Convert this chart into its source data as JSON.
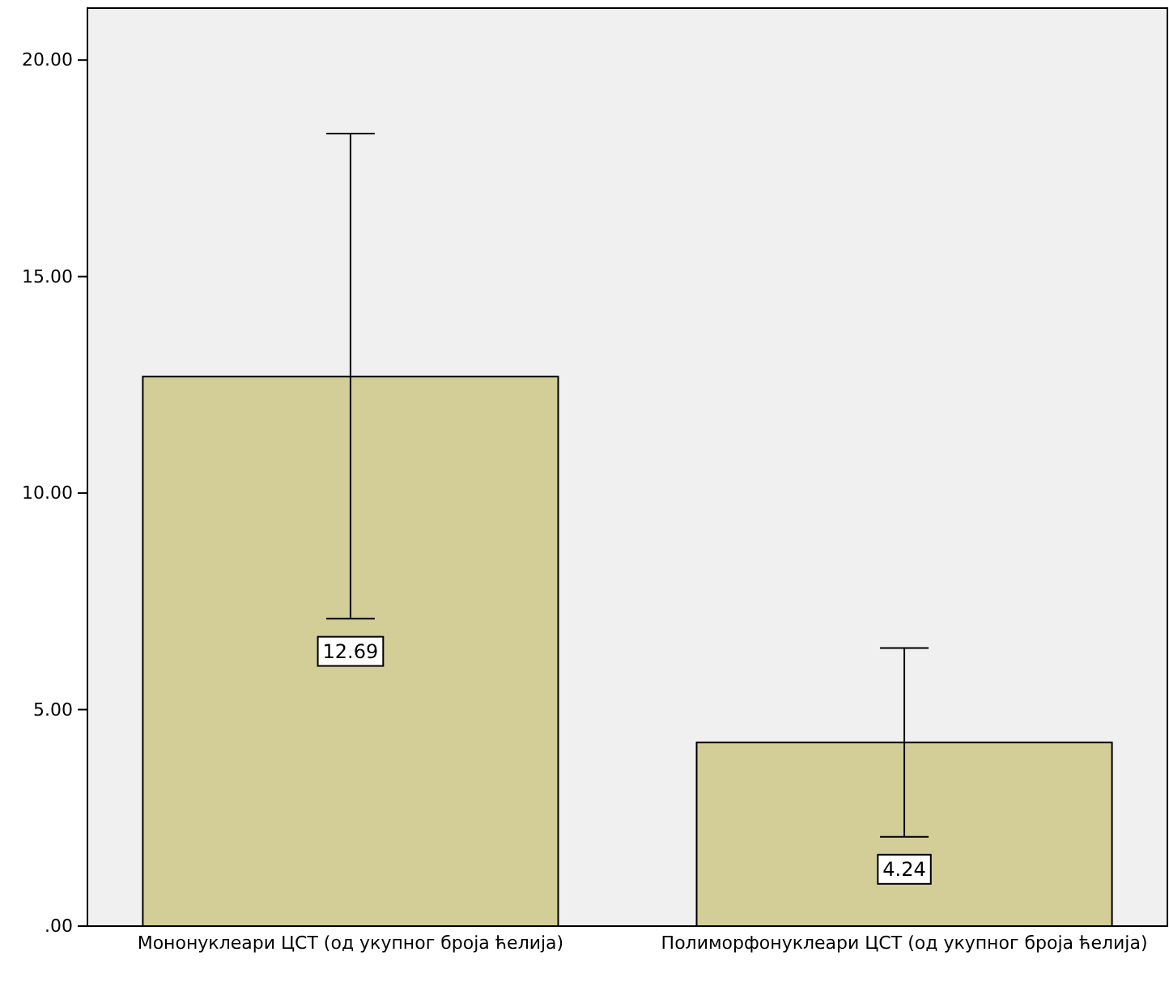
{
  "chart_data": {
    "type": "bar",
    "categories": [
      "Мононуклеари ЦСТ (од укупног броја ћелија)",
      "Полиморфонуклеари ЦСТ (од укупног броја ћелија)"
    ],
    "values": [
      12.69,
      4.24
    ],
    "errors": [
      [
        7.1,
        18.3
      ],
      [
        2.06,
        6.42
      ]
    ],
    "color": "#d3ce98",
    "ylim": [
      0,
      21.2
    ],
    "yticks": [
      {
        "value": 0,
        "label": ".00"
      },
      {
        "value": 5,
        "label": "5.00"
      },
      {
        "value": 10,
        "label": "10.00"
      },
      {
        "value": 15,
        "label": "15.00"
      },
      {
        "value": 20,
        "label": "20.00"
      }
    ],
    "data_labels": true,
    "grid": false
  }
}
